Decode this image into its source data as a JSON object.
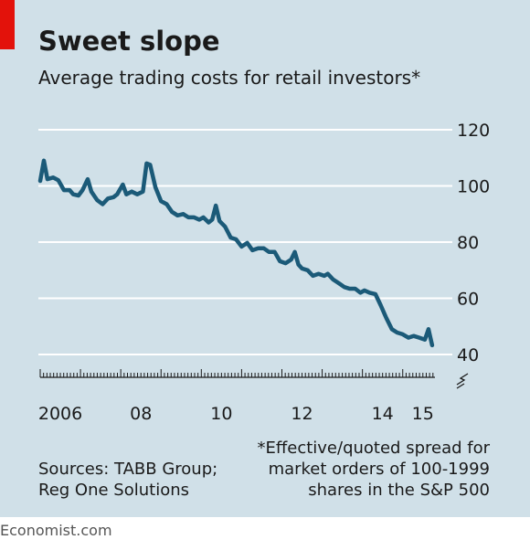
{
  "chart_data": {
    "type": "line",
    "title": "Sweet slope",
    "subtitle": "Average trading costs for retail investors*",
    "footnote": [
      "*Effective/quoted spread for",
      "market orders of 100-1999",
      "shares in the S&P 500"
    ],
    "source": [
      "Sources: TABB Group;",
      "Reg One Solutions"
    ],
    "credit": "Economist.com",
    "color": "#1b5a78",
    "x": [
      2006.0,
      2006.09,
      2006.18,
      2006.32,
      2006.45,
      2006.59,
      2006.73,
      2006.82,
      2006.95,
      2007.05,
      2007.18,
      2007.27,
      2007.41,
      2007.55,
      2007.68,
      2007.82,
      2007.91,
      2008.05,
      2008.14,
      2008.27,
      2008.41,
      2008.55,
      2008.64,
      2008.73,
      2008.86,
      2009.0,
      2009.14,
      2009.27,
      2009.41,
      2009.55,
      2009.68,
      2009.82,
      2009.95,
      2010.05,
      2010.18,
      2010.27,
      2010.36,
      2010.45,
      2010.59,
      2010.73,
      2010.86,
      2011.0,
      2011.14,
      2011.27,
      2011.41,
      2011.55,
      2011.68,
      2011.82,
      2011.95,
      2012.09,
      2012.23,
      2012.32,
      2012.41,
      2012.5,
      2012.64,
      2012.77,
      2012.91,
      2013.05,
      2013.14,
      2013.27,
      2013.41,
      2013.55,
      2013.68,
      2013.82,
      2013.95,
      2014.05,
      2014.18,
      2014.32,
      2014.45,
      2014.59,
      2014.73,
      2014.86,
      2015.0,
      2015.14,
      2015.27,
      2015.41,
      2015.55,
      2015.64,
      2015.73
    ],
    "values": [
      101.8,
      109,
      102.4,
      103,
      102,
      98.5,
      98.5,
      97,
      96.6,
      98.5,
      102.4,
      98,
      95,
      93.5,
      95.5,
      96,
      97,
      100.5,
      97,
      98,
      97,
      98,
      108,
      107.5,
      99.5,
      94.6,
      93.5,
      90.8,
      89.5,
      90,
      88.8,
      88.8,
      88,
      88.8,
      87,
      88,
      93,
      87.5,
      85.5,
      81.6,
      81,
      78.4,
      79.7,
      77.1,
      77.8,
      77.8,
      76.5,
      76.5,
      73.2,
      72.5,
      73.8,
      76.5,
      72,
      70.6,
      70,
      68,
      68.7,
      68,
      68.7,
      66.7,
      65.4,
      64,
      63.4,
      63.4,
      62,
      62.8,
      62,
      61.5,
      57.6,
      53,
      49,
      47.8,
      47.2,
      46,
      46.6,
      46,
      45.3,
      49,
      43.3
    ],
    "xlim": [
      2006,
      2015.8
    ],
    "xticks": [
      {
        "value": 2006.5,
        "label": "2006"
      },
      {
        "value": 2008.5,
        "label": "08"
      },
      {
        "value": 2010.5,
        "label": "10"
      },
      {
        "value": 2012.5,
        "label": "12"
      },
      {
        "value": 2014.5,
        "label": "14"
      },
      {
        "value": 2015.5,
        "label": "15"
      }
    ],
    "ylim": [
      40,
      120
    ],
    "yticks": [
      40,
      60,
      80,
      100,
      120
    ],
    "grid": true
  }
}
